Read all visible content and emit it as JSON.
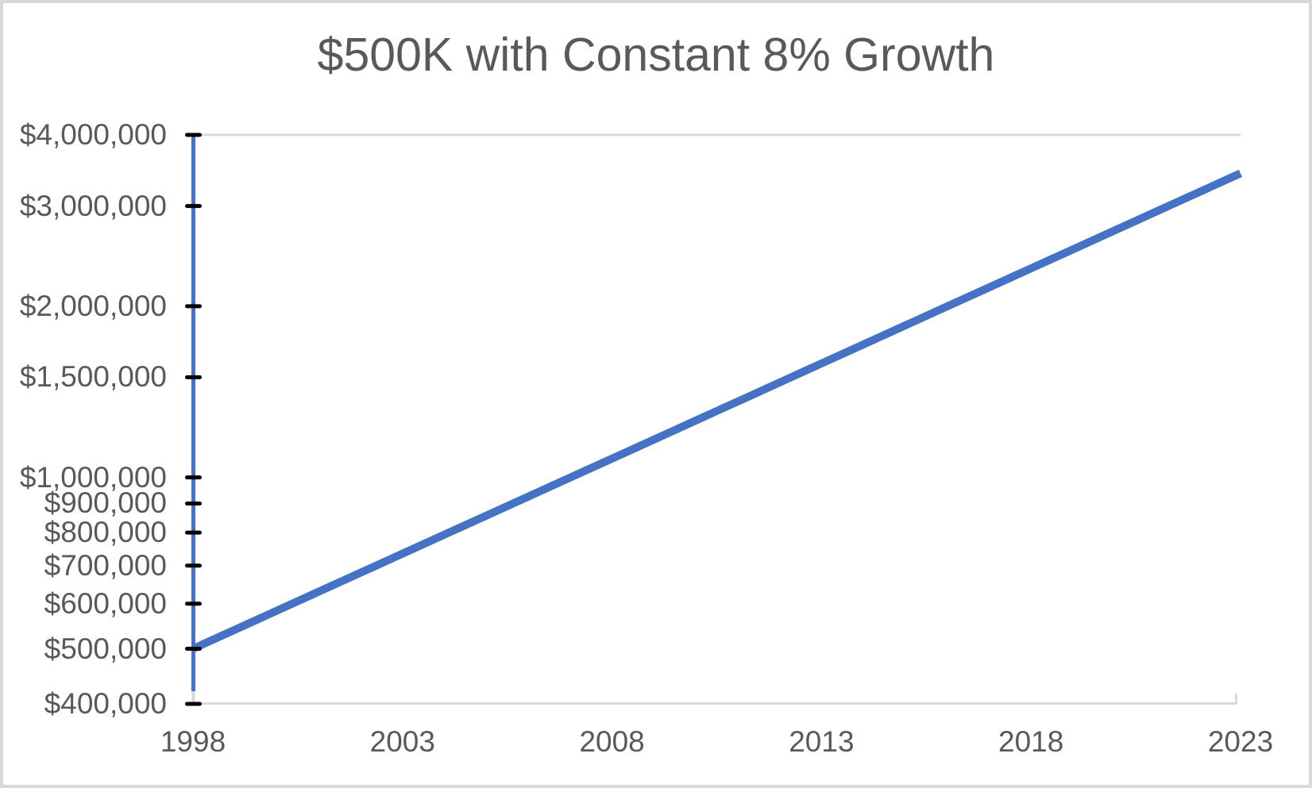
{
  "chart_data": {
    "type": "line",
    "title": "$500K with Constant 8% Growth",
    "x": [
      1998,
      1999,
      2000,
      2001,
      2002,
      2003,
      2004,
      2005,
      2006,
      2007,
      2008,
      2009,
      2010,
      2011,
      2012,
      2013,
      2014,
      2015,
      2016,
      2017,
      2018,
      2019,
      2020,
      2021,
      2022,
      2023
    ],
    "series": [
      {
        "values": [
          500000,
          540000,
          583200,
          629856,
          680244,
          734664,
          793437,
          856912,
          925465,
          999502,
          1079463,
          1165820,
          1259085,
          1359812,
          1468597,
          1586085,
          1712971,
          1850009,
          1998010,
          2157851,
          2330479,
          2516917,
          2718270,
          2935732,
          3170590,
          3424238
        ],
        "color": "#4472c4"
      }
    ],
    "growth_rate_percent": 8,
    "starting_value": 500000,
    "x_axis": {
      "min": 1998,
      "max": 2023,
      "ticks": [
        {
          "value": 1998,
          "label": "1998"
        },
        {
          "value": 2003,
          "label": "2003"
        },
        {
          "value": 2008,
          "label": "2008"
        },
        {
          "value": 2013,
          "label": "2013"
        },
        {
          "value": 2018,
          "label": "2018"
        },
        {
          "value": 2023,
          "label": "2023"
        }
      ]
    },
    "y_axis": {
      "scale": "log",
      "min": 400000,
      "max": 4000000,
      "ticks": [
        {
          "value": 4000000,
          "label": "$4,000,000"
        },
        {
          "value": 3000000,
          "label": "$3,000,000"
        },
        {
          "value": 2000000,
          "label": "$2,000,000"
        },
        {
          "value": 1500000,
          "label": "$1,500,000"
        },
        {
          "value": 1000000,
          "label": "$1,000,000"
        },
        {
          "value": 900000,
          "label": "$900,000"
        },
        {
          "value": 800000,
          "label": "$800,000"
        },
        {
          "value": 700000,
          "label": "$700,000"
        },
        {
          "value": 600000,
          "label": "$600,000"
        },
        {
          "value": 500000,
          "label": "$500,000"
        },
        {
          "value": 400000,
          "label": "$400,000"
        }
      ]
    },
    "legend": "none",
    "grid": "top-gridline-only",
    "colors": {
      "line": "#4472c4",
      "axis_and_grid": "#d9d9d9",
      "tick_marks": "#000000",
      "text": "#595959",
      "frame_border": "#d9d9d9",
      "background": "#ffffff"
    }
  }
}
